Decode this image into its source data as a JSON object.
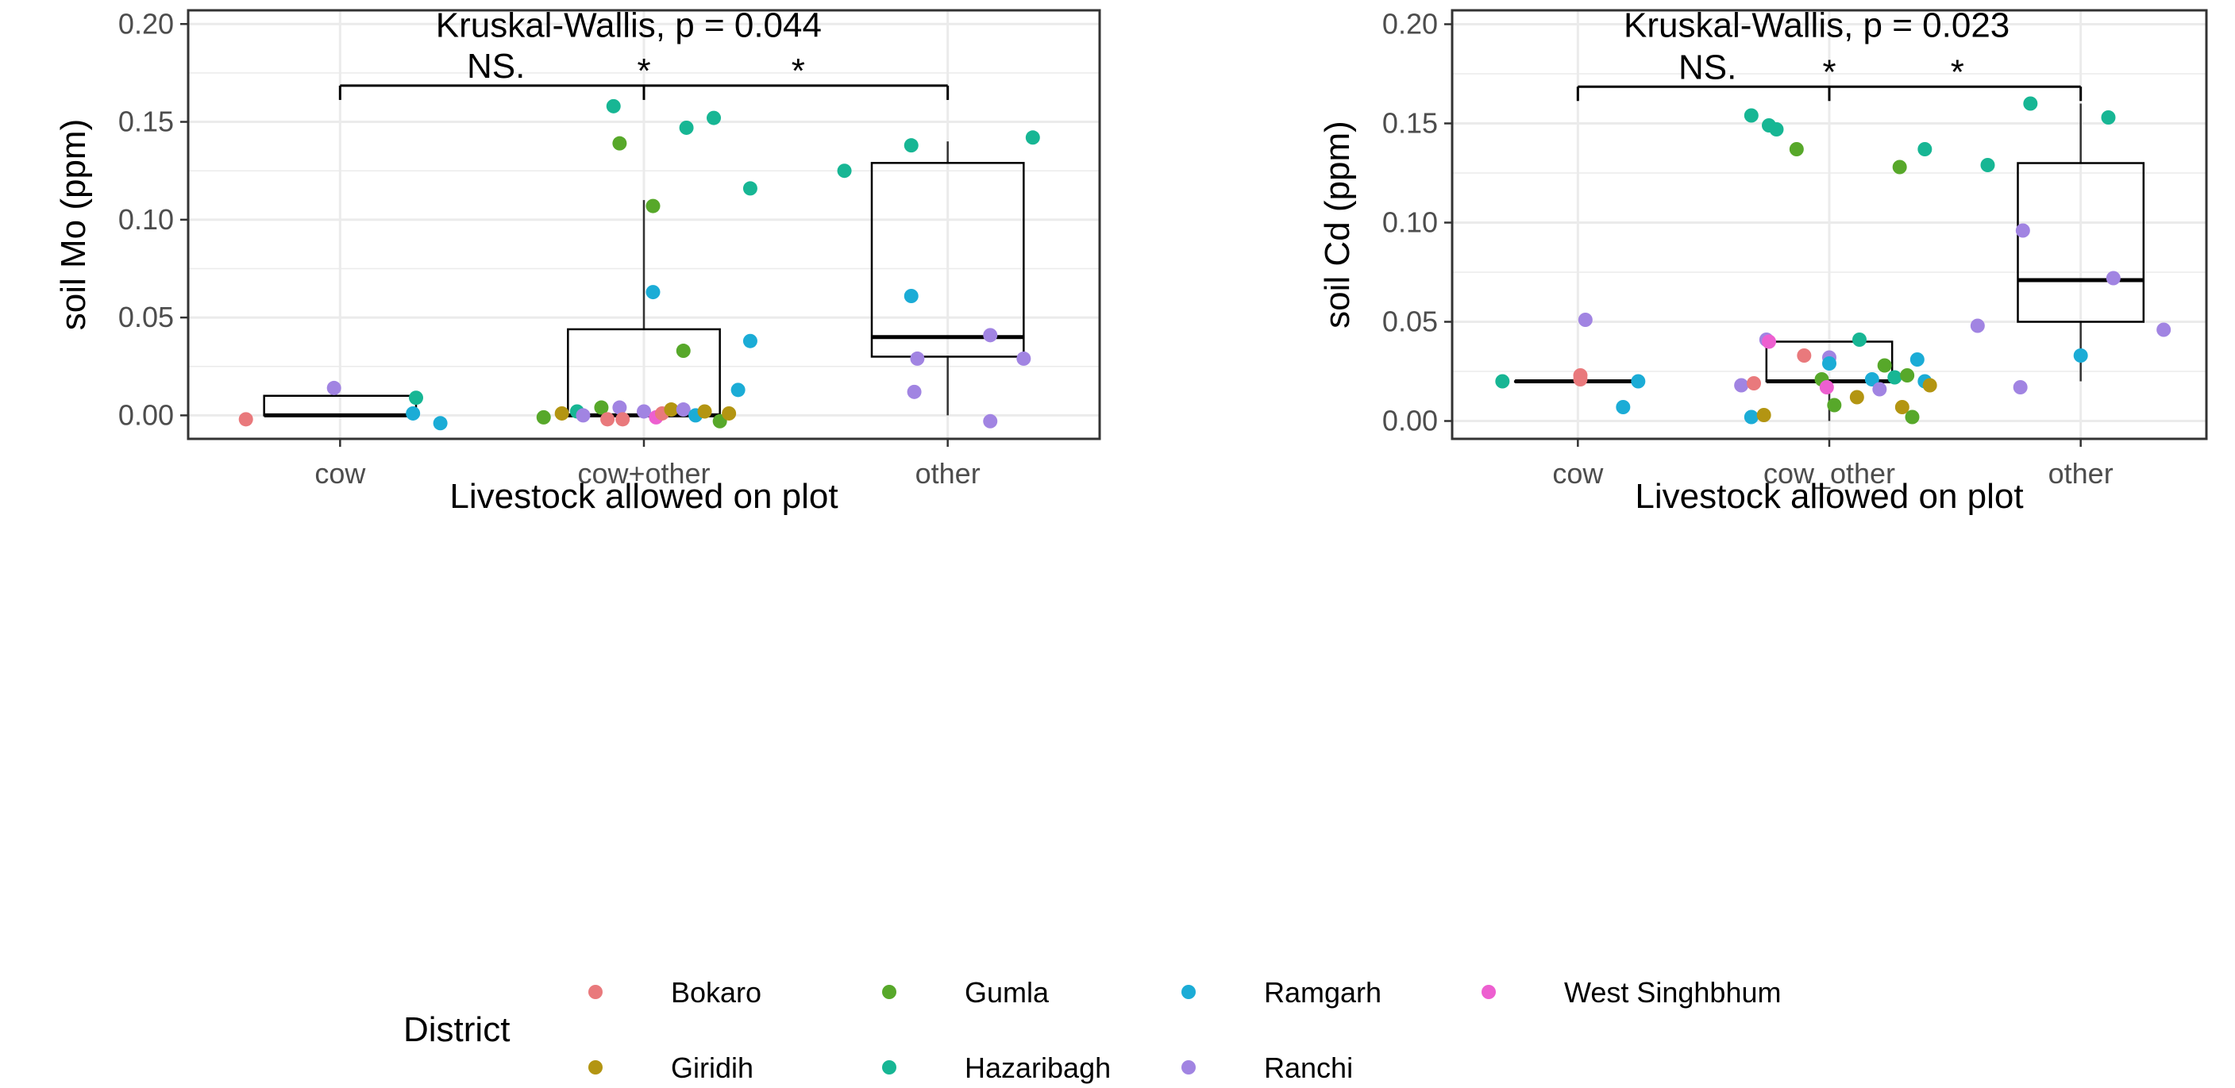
{
  "chart_data": [
    {
      "type": "box",
      "title": "Kruskal-Wallis, p = 0.044",
      "xlabel": "Livestock allowed on plot",
      "ylabel": "soil Mo (ppm)",
      "ylim": [
        -0.012,
        0.207
      ],
      "yticks": [
        0.0,
        0.05,
        0.1,
        0.15,
        0.2
      ],
      "ytick_labels": [
        "0.00",
        "0.05",
        "0.10",
        "0.15",
        "0.20"
      ],
      "categories": [
        "cow",
        "cow+other",
        "other"
      ],
      "boxes": [
        {
          "category": "cow",
          "whisker_low": 0.0,
          "q1": 0.0,
          "median": 0.0,
          "q3": 0.01,
          "whisker_high": 0.01
        },
        {
          "category": "cow+other",
          "whisker_low": 0.0,
          "q1": 0.0,
          "median": 0.0,
          "q3": 0.044,
          "whisker_high": 0.11
        },
        {
          "category": "other",
          "whisker_low": 0.0,
          "q1": 0.03,
          "median": 0.04,
          "q3": 0.129,
          "whisker_high": 0.14
        }
      ],
      "comparisons": [
        {
          "from": "cow",
          "to": "cow+other",
          "label": "NS."
        },
        {
          "from": "cow+other",
          "to": "other",
          "label": "*"
        },
        {
          "from": "cow",
          "to": "other",
          "label": "*"
        }
      ],
      "points": [
        {
          "x": 0.69,
          "y": -0.002,
          "district": "Bokaro"
        },
        {
          "x": 0.98,
          "y": 0.014,
          "district": "Ranchi"
        },
        {
          "x": 1.25,
          "y": 0.009,
          "district": "Hazaribagh"
        },
        {
          "x": 1.24,
          "y": 0.001,
          "district": "Ramgarh"
        },
        {
          "x": 1.33,
          "y": -0.004,
          "district": "Ramgarh"
        },
        {
          "x": 1.67,
          "y": -0.001,
          "district": "Gumla"
        },
        {
          "x": 1.73,
          "y": 0.001,
          "district": "Giridih"
        },
        {
          "x": 1.78,
          "y": 0.002,
          "district": "Hazaribagh"
        },
        {
          "x": 1.8,
          "y": 0.0,
          "district": "Ranchi"
        },
        {
          "x": 1.86,
          "y": 0.004,
          "district": "Gumla"
        },
        {
          "x": 1.88,
          "y": -0.002,
          "district": "Bokaro"
        },
        {
          "x": 1.92,
          "y": 0.004,
          "district": "Ranchi"
        },
        {
          "x": 1.93,
          "y": -0.002,
          "district": "Bokaro"
        },
        {
          "x": 2.0,
          "y": 0.002,
          "district": "Ranchi"
        },
        {
          "x": 2.04,
          "y": -0.001,
          "district": "West Singhbhum"
        },
        {
          "x": 2.06,
          "y": 0.001,
          "district": "Bokaro"
        },
        {
          "x": 2.09,
          "y": 0.003,
          "district": "Giridih"
        },
        {
          "x": 2.13,
          "y": 0.003,
          "district": "Ranchi"
        },
        {
          "x": 2.17,
          "y": 0.0,
          "district": "Ramgarh"
        },
        {
          "x": 2.2,
          "y": 0.002,
          "district": "Giridih"
        },
        {
          "x": 2.25,
          "y": -0.003,
          "district": "Gumla"
        },
        {
          "x": 2.28,
          "y": 0.001,
          "district": "Giridih"
        },
        {
          "x": 1.9,
          "y": 0.158,
          "district": "Hazaribagh"
        },
        {
          "x": 1.92,
          "y": 0.139,
          "district": "Gumla"
        },
        {
          "x": 2.14,
          "y": 0.147,
          "district": "Hazaribagh"
        },
        {
          "x": 2.23,
          "y": 0.152,
          "district": "Hazaribagh"
        },
        {
          "x": 2.35,
          "y": 0.116,
          "district": "Hazaribagh"
        },
        {
          "x": 2.03,
          "y": 0.107,
          "district": "Gumla"
        },
        {
          "x": 2.03,
          "y": 0.063,
          "district": "Ramgarh"
        },
        {
          "x": 2.13,
          "y": 0.033,
          "district": "Gumla"
        },
        {
          "x": 2.35,
          "y": 0.038,
          "district": "Ramgarh"
        },
        {
          "x": 2.31,
          "y": 0.013,
          "district": "Ramgarh"
        },
        {
          "x": 2.66,
          "y": 0.125,
          "district": "Hazaribagh"
        },
        {
          "x": 2.88,
          "y": 0.138,
          "district": "Hazaribagh"
        },
        {
          "x": 3.28,
          "y": 0.142,
          "district": "Hazaribagh"
        },
        {
          "x": 2.88,
          "y": 0.061,
          "district": "Ramgarh"
        },
        {
          "x": 3.14,
          "y": 0.041,
          "district": "Ranchi"
        },
        {
          "x": 2.9,
          "y": 0.029,
          "district": "Ranchi"
        },
        {
          "x": 3.25,
          "y": 0.029,
          "district": "Ranchi"
        },
        {
          "x": 2.89,
          "y": 0.012,
          "district": "Ranchi"
        },
        {
          "x": 3.14,
          "y": -0.003,
          "district": "Ranchi"
        }
      ]
    },
    {
      "type": "box",
      "title": "Kruskal-Wallis, p = 0.023",
      "xlabel": "Livestock allowed on plot",
      "ylabel": "soil Cd (ppm)",
      "ylim": [
        -0.009,
        0.207
      ],
      "yticks": [
        0.0,
        0.05,
        0.1,
        0.15,
        0.2
      ],
      "ytick_labels": [
        "0.00",
        "0.05",
        "0.10",
        "0.15",
        "0.20"
      ],
      "categories": [
        "cow",
        "cow_other",
        "other"
      ],
      "boxes": [
        {
          "category": "cow",
          "whisker_low": 0.02,
          "q1": 0.02,
          "median": 0.02,
          "q3": 0.02,
          "whisker_high": 0.02
        },
        {
          "category": "cow_other",
          "whisker_low": 0.0,
          "q1": 0.02,
          "median": 0.02,
          "q3": 0.04,
          "whisker_high": 0.04
        },
        {
          "category": "other",
          "whisker_low": 0.02,
          "q1": 0.05,
          "median": 0.071,
          "q3": 0.13,
          "whisker_high": 0.16
        }
      ],
      "comparisons": [
        {
          "from": "cow",
          "to": "cow_other",
          "label": "NS."
        },
        {
          "from": "cow_other",
          "to": "other",
          "label": "*"
        },
        {
          "from": "cow",
          "to": "other",
          "label": "*"
        }
      ],
      "points": [
        {
          "x": 0.7,
          "y": 0.02,
          "district": "Hazaribagh"
        },
        {
          "x": 1.01,
          "y": 0.023,
          "district": "Bokaro"
        },
        {
          "x": 1.01,
          "y": 0.021,
          "district": "Bokaro"
        },
        {
          "x": 1.03,
          "y": 0.051,
          "district": "Ranchi"
        },
        {
          "x": 1.24,
          "y": 0.02,
          "district": "Ramgarh"
        },
        {
          "x": 1.18,
          "y": 0.007,
          "district": "Ramgarh"
        },
        {
          "x": 1.69,
          "y": 0.154,
          "district": "Hazaribagh"
        },
        {
          "x": 1.76,
          "y": 0.149,
          "district": "Hazaribagh"
        },
        {
          "x": 1.79,
          "y": 0.147,
          "district": "Hazaribagh"
        },
        {
          "x": 1.87,
          "y": 0.137,
          "district": "Gumla"
        },
        {
          "x": 2.28,
          "y": 0.128,
          "district": "Gumla"
        },
        {
          "x": 2.38,
          "y": 0.137,
          "district": "Hazaribagh"
        },
        {
          "x": 1.75,
          "y": 0.041,
          "district": "Ranchi"
        },
        {
          "x": 1.76,
          "y": 0.04,
          "district": "West Singhbhum"
        },
        {
          "x": 1.9,
          "y": 0.033,
          "district": "Bokaro"
        },
        {
          "x": 2.0,
          "y": 0.032,
          "district": "Ranchi"
        },
        {
          "x": 2.0,
          "y": 0.029,
          "district": "Ramgarh"
        },
        {
          "x": 2.12,
          "y": 0.041,
          "district": "Hazaribagh"
        },
        {
          "x": 2.35,
          "y": 0.031,
          "district": "Ramgarh"
        },
        {
          "x": 1.65,
          "y": 0.018,
          "district": "Ranchi"
        },
        {
          "x": 1.7,
          "y": 0.019,
          "district": "Bokaro"
        },
        {
          "x": 1.97,
          "y": 0.021,
          "district": "Gumla"
        },
        {
          "x": 1.99,
          "y": 0.017,
          "district": "West Singhbhum"
        },
        {
          "x": 2.02,
          "y": 0.008,
          "district": "Gumla"
        },
        {
          "x": 2.11,
          "y": 0.012,
          "district": "Giridih"
        },
        {
          "x": 2.17,
          "y": 0.021,
          "district": "Ramgarh"
        },
        {
          "x": 2.2,
          "y": 0.016,
          "district": "Ranchi"
        },
        {
          "x": 2.22,
          "y": 0.028,
          "district": "Gumla"
        },
        {
          "x": 2.26,
          "y": 0.022,
          "district": "Hazaribagh"
        },
        {
          "x": 2.29,
          "y": 0.007,
          "district": "Giridih"
        },
        {
          "x": 2.31,
          "y": 0.023,
          "district": "Gumla"
        },
        {
          "x": 2.33,
          "y": 0.002,
          "district": "Gumla"
        },
        {
          "x": 2.38,
          "y": 0.02,
          "district": "Ramgarh"
        },
        {
          "x": 2.4,
          "y": 0.018,
          "district": "Giridih"
        },
        {
          "x": 1.69,
          "y": 0.002,
          "district": "Ramgarh"
        },
        {
          "x": 1.74,
          "y": 0.003,
          "district": "Giridih"
        },
        {
          "x": 2.63,
          "y": 0.129,
          "district": "Hazaribagh"
        },
        {
          "x": 2.8,
          "y": 0.16,
          "district": "Hazaribagh"
        },
        {
          "x": 3.11,
          "y": 0.153,
          "district": "Hazaribagh"
        },
        {
          "x": 2.77,
          "y": 0.096,
          "district": "Ranchi"
        },
        {
          "x": 3.13,
          "y": 0.072,
          "district": "Ranchi"
        },
        {
          "x": 2.59,
          "y": 0.048,
          "district": "Ranchi"
        },
        {
          "x": 3.33,
          "y": 0.046,
          "district": "Ranchi"
        },
        {
          "x": 3.0,
          "y": 0.033,
          "district": "Ramgarh"
        },
        {
          "x": 2.76,
          "y": 0.017,
          "district": "Ranchi"
        }
      ]
    }
  ],
  "legend": {
    "title": "District",
    "items": [
      {
        "label": "Bokaro",
        "color": "#e9797c"
      },
      {
        "label": "Gumla",
        "color": "#57a82a"
      },
      {
        "label": "Ramgarh",
        "color": "#1bacd6"
      },
      {
        "label": "West Singhbhum",
        "color": "#ed5fd0"
      },
      {
        "label": "Giridih",
        "color": "#b39512"
      },
      {
        "label": "Hazaribagh",
        "color": "#17b694"
      },
      {
        "label": "Ranchi",
        "color": "#a184e2"
      }
    ]
  }
}
